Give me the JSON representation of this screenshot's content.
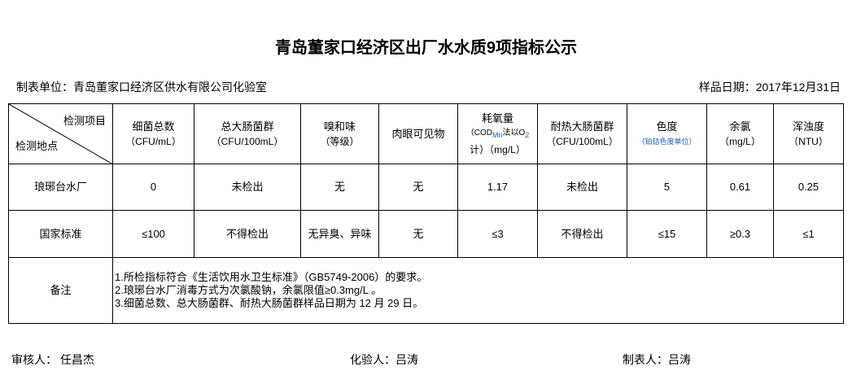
{
  "title": "青岛董家口经济区出厂水水质9项指标公示",
  "unit": "制表单位：青岛董家口经济区供水有限公司化验室",
  "date": "样品日期：2017年12月31日",
  "header": {
    "corner_top": "检测项目",
    "corner_bottom": "检测地点",
    "cols": [
      {
        "name": "细菌总数",
        "unit": "（CFU/mL）"
      },
      {
        "name": "总大肠菌群",
        "unit": "（CFU/100mL）"
      },
      {
        "name": "嗅和味",
        "unit": "（等级）"
      },
      {
        "name": "肉眼可见物",
        "unit": ""
      },
      {
        "name": "耗氧量",
        "unit": "（COD",
        "unit_sub": "Mn",
        "unit2": "法以O",
        "unit_sub2": "2",
        "unit3": "计）（mg/L）"
      },
      {
        "name": "耐热大肠菌群",
        "unit": "（CFU/100mL）"
      },
      {
        "name": "色度",
        "unit": "（铂钴色度单位）"
      },
      {
        "name": "余氯",
        "unit": "（mg/L）"
      },
      {
        "name": "浑浊度",
        "unit": "（NTU）"
      }
    ]
  },
  "rows": [
    {
      "label": "琅琊台水厂",
      "values": [
        "0",
        "未检出",
        "无",
        "无",
        "1.17",
        "未检出",
        "5",
        "0.61",
        "0.25"
      ]
    },
    {
      "label": "国家标准",
      "values": [
        "≤100",
        "不得检出",
        "无异臭、异味",
        "无",
        "≤3",
        "不得检出",
        "≤15",
        "≥0.3",
        "≤1"
      ]
    }
  ],
  "notes": {
    "label": "备注",
    "lines": [
      "1.所检指标符合《生活饮用水卫生标准》（GB5749-2006）的要求。",
      "2.琅琊台水厂消毒方式为次氯酸钠，余氯限值≥0.3mg/L 。",
      "3.细菌总数、总大肠菌群、耐热大肠菌群样品日期为 12 月 29 日。"
    ]
  },
  "footer": {
    "reviewer": "审核人：  任昌杰",
    "tester": "化验人：吕涛",
    "preparer": "制表人：吕涛"
  }
}
